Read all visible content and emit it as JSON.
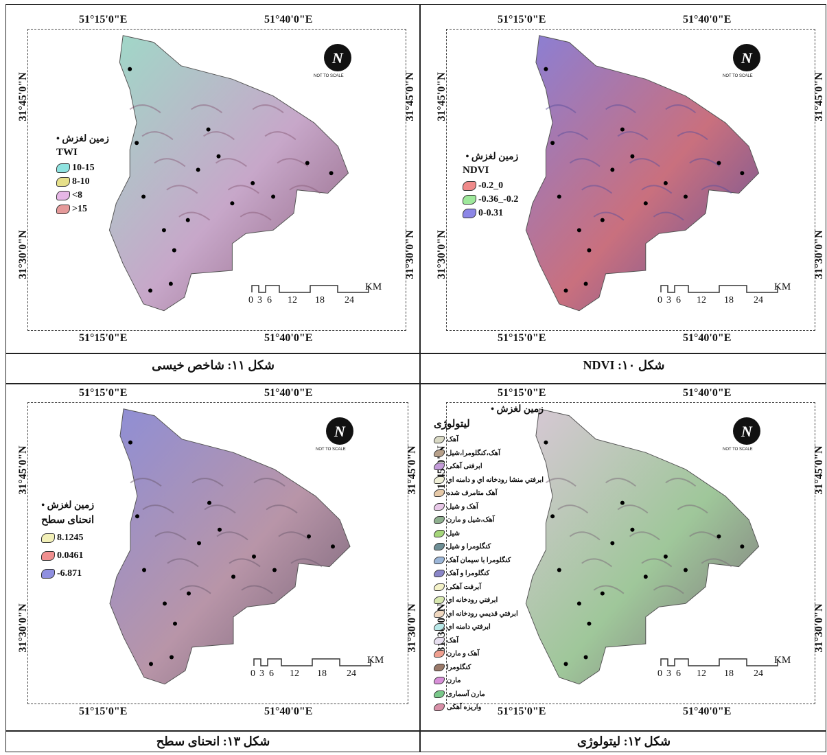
{
  "coords": {
    "lon1": "51°15'0\"E",
    "lon2": "51°40'0\"E",
    "lat1": "31°45'0\"N",
    "lat2": "31°30'0\"N"
  },
  "scalebar": {
    "unit": "KM",
    "ticks": [
      "0",
      "3",
      "6",
      "12",
      "18",
      "24"
    ]
  },
  "compass": {
    "label": "N",
    "note": "NOT TO SCALE"
  },
  "panels": {
    "twi": {
      "caption": "شکل ۱۱: شاخص خیسی",
      "point_label": "زمین لغزش",
      "legend_title": "TWI",
      "classes": [
        {
          "label": "10-15",
          "color": "#8fe3e0"
        },
        {
          "label": "8-10",
          "color": "#e6e08a"
        },
        {
          "label": "<8",
          "color": "#e6b6e6"
        },
        {
          "label": ">15",
          "color": "#e59a9a"
        }
      ],
      "map_colors": [
        "#9fd9c8",
        "#c7a7c9",
        "#8a5d7a"
      ]
    },
    "ndvi": {
      "caption": "شکل ۱۰: NDVI",
      "point_label": "زمین لغزش",
      "legend_title": "NDVI",
      "classes": [
        {
          "label": "-0.2_0",
          "color": "#ef8a8a"
        },
        {
          "label": "-0.36_-0.2",
          "color": "#9ee89b"
        },
        {
          "label": "0-0.31",
          "color": "#8c86e6"
        }
      ],
      "map_colors": [
        "#8a7fd6",
        "#c9707e",
        "#5b4f9c"
      ]
    },
    "curv": {
      "caption": "شکل ۱۳: انحنای سطح",
      "point_label": "زمین لغزش",
      "legend_title": "انحنای سطح",
      "classes": [
        {
          "label": "8.1245",
          "color": "#f2f0b8"
        },
        {
          "label": "0.0461",
          "color": "#f08f8f"
        },
        {
          "label": "-6.871",
          "color": "#8f8fe0"
        }
      ],
      "map_colors": [
        "#8e8ed6",
        "#b895a8",
        "#6d5b6f"
      ]
    },
    "litho": {
      "caption": "شکل ۱۲: لیتولوژی",
      "point_label": "زمین لغزش",
      "legend_title": "ليتولوژی",
      "classes": [
        {
          "label": "آهک",
          "color": "#d9d9c4"
        },
        {
          "label": "آهک،كنگلومرا،شيل",
          "color": "#b7a08a"
        },
        {
          "label": "ابرفتی آهکی",
          "color": "#c39bd9"
        },
        {
          "label": "ابرفتي منشا رودخانه اي و دامنه اي",
          "color": "#f0f0d8"
        },
        {
          "label": "آهک متامرف شده",
          "color": "#e6c9a8"
        },
        {
          "label": "آهک و شيل",
          "color": "#e8c8e8"
        },
        {
          "label": "آهک،شيل و مارن",
          "color": "#8fb08f"
        },
        {
          "label": "شيل",
          "color": "#a5d67a"
        },
        {
          "label": "كنگلومرا و شيل",
          "color": "#6e8f96"
        },
        {
          "label": "كنگلومرا با سيمان آهک",
          "color": "#9cb6d8"
        },
        {
          "label": "كنگلومرا و آهک",
          "color": "#8a86c8"
        },
        {
          "label": "آبرفت آهکی",
          "color": "#f4f2c8"
        },
        {
          "label": "ابرفتي رودخانه اي",
          "color": "#d8e8b0"
        },
        {
          "label": "ابرفتي قديمي رودخانه اي",
          "color": "#f0d8c0"
        },
        {
          "label": "ابرفتي دامنه اي",
          "color": "#b8e8e8"
        },
        {
          "label": "آهک",
          "color": "#e8e0f0"
        },
        {
          "label": "آهک و مارن",
          "color": "#f0a090"
        },
        {
          "label": "كنگلومرا",
          "color": "#9a7a6a"
        },
        {
          "label": "مارن",
          "color": "#d890d8"
        },
        {
          "label": "مارن آسماری",
          "color": "#7ac88a"
        },
        {
          "label": "واريزه آهکی",
          "color": "#d890a8"
        }
      ],
      "map_colors": [
        "#d8c8d6",
        "#9fc79a",
        "#7a6a78"
      ]
    }
  }
}
